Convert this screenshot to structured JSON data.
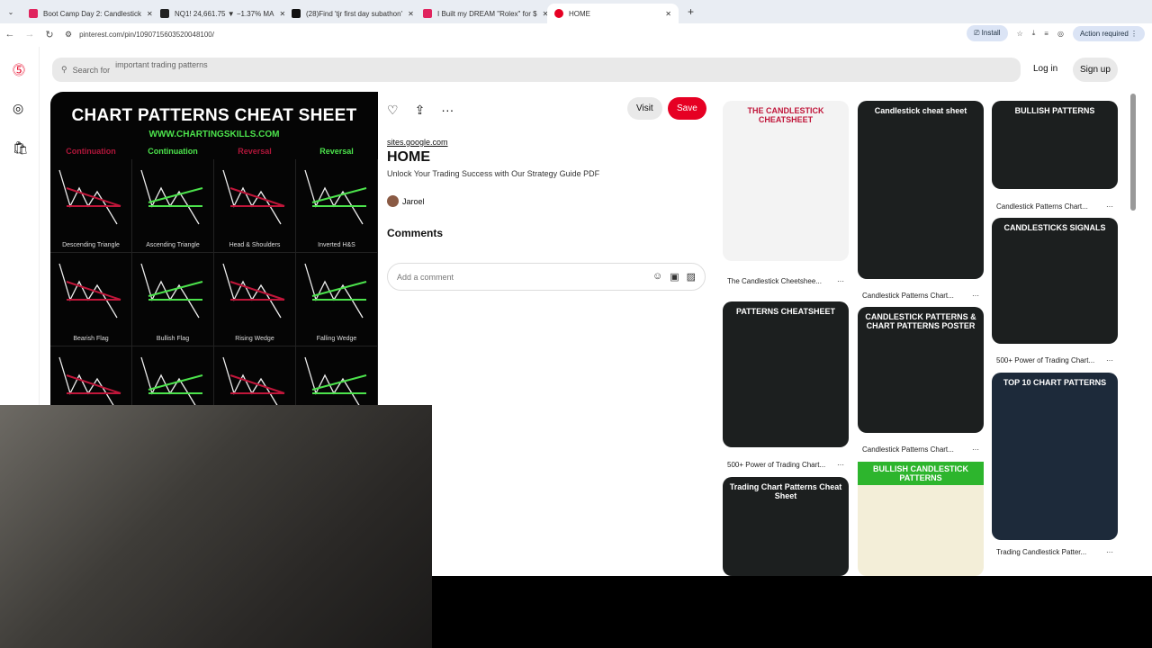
{
  "tabs": [
    {
      "title": "Boot Camp Day 2: Candlestick",
      "color": "#e0245e"
    },
    {
      "title": "NQ1! 24,661.75 ▼ −1.37% MA",
      "color": "#222"
    },
    {
      "title": "(28)Find 'tjr first day subathon'",
      "color": "#111"
    },
    {
      "title": "I Built my DREAM \"Rolex\" for $",
      "color": "#e0245e"
    },
    {
      "title": "HOME",
      "color": "#e60023",
      "active": true
    }
  ],
  "address": {
    "url": "pinterest.com/pin/1090715603520048100/",
    "install": "Install",
    "action": "Action required"
  },
  "search": {
    "placeholder": "Search for",
    "value": "important trading patterns"
  },
  "header": {
    "login": "Log in",
    "signup": "Sign up"
  },
  "pin": {
    "image_title": "CHART PATTERNS CHEAT SHEET",
    "image_site": "WWW.CHARTINGSKILLS.COM",
    "column_heads": [
      {
        "t": "Continuation",
        "c": "#b0163a"
      },
      {
        "t": "Continuation",
        "c": "#4ce34c"
      },
      {
        "t": "Reversal",
        "c": "#b0163a"
      },
      {
        "t": "Reversal",
        "c": "#4ce34c"
      }
    ],
    "patterns": [
      "Descending Triangle",
      "Ascending Triangle",
      "Head & Shoulders",
      "Inverted H&S",
      "Bearish Flag",
      "Bullish Flag",
      "Rising Wedge",
      "Falling Wedge"
    ],
    "visit": "Visit",
    "save": "Save",
    "source": "sites.google.com",
    "title": "HOME",
    "description": "Unlock Your Trading Success with Our Strategy Guide PDF",
    "author": "Jaroel",
    "comments_heading": "Comments",
    "comment_placeholder": "Add a comment"
  },
  "related": [
    {
      "header": "THE CANDLESTICK CHEATSHEET",
      "caption": "The Candlestick Cheetshee..."
    },
    {
      "header": "PATTERNS CHEATSHEET",
      "caption": "500+ Power of Trading Chart..."
    },
    {
      "header": "Trading Chart Patterns Cheat Sheet",
      "caption": ""
    },
    {
      "header": "Candlestick cheat sheet",
      "caption": "Candlestick Patterns Chart..."
    },
    {
      "header": "CANDLESTICK PATTERNS & CHART PATTERNS POSTER",
      "caption": "Candlestick Patterns Chart..."
    },
    {
      "header": "BULLISH CANDLESTICK PATTERNS",
      "caption": ""
    },
    {
      "header": "BULLISH PATTERNS",
      "caption": "Candlestick Patterns Chart..."
    },
    {
      "header": "CANDLESTICKS SIGNALS",
      "caption": "500+ Power of Trading Chart..."
    },
    {
      "header": "TOP 10 CHART PATTERNS",
      "caption": "Trading Candlestick Patter..."
    }
  ],
  "more": "···"
}
